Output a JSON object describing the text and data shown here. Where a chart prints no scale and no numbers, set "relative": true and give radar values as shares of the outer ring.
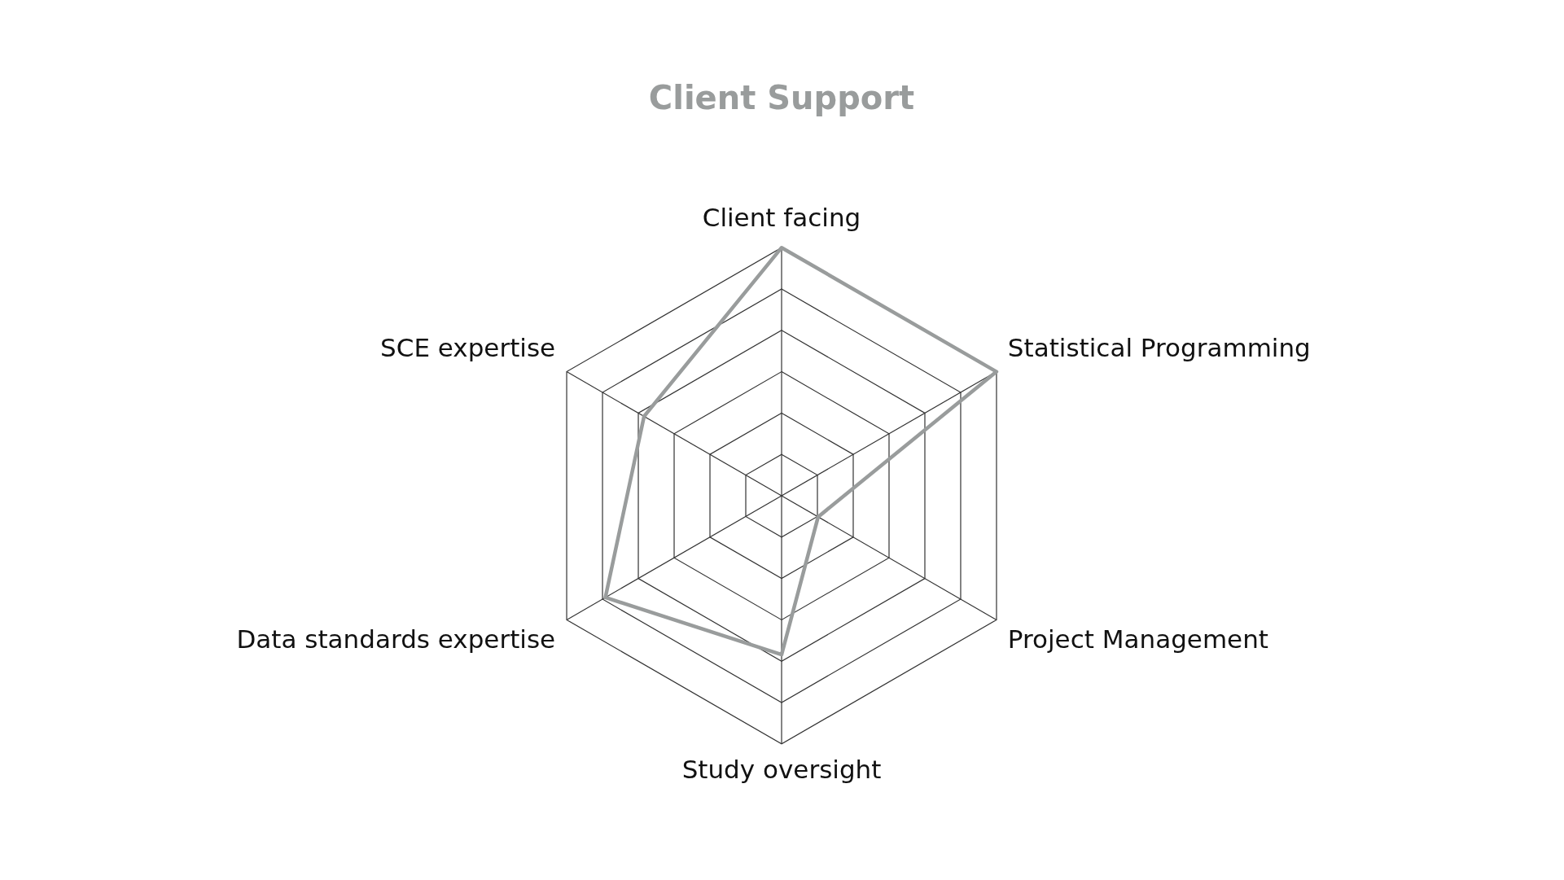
{
  "chart_data": {
    "type": "radar",
    "title": "Client Support",
    "categories": [
      "Client facing",
      "Statistical Programming",
      "Project Management",
      "Study oversight",
      "Data standards expertise",
      "SCE expertise"
    ],
    "values": [
      1,
      1,
      0.17,
      0.64,
      0.82,
      0.64
    ],
    "color": "#999c9c",
    "relative": true,
    "grid": true
  }
}
